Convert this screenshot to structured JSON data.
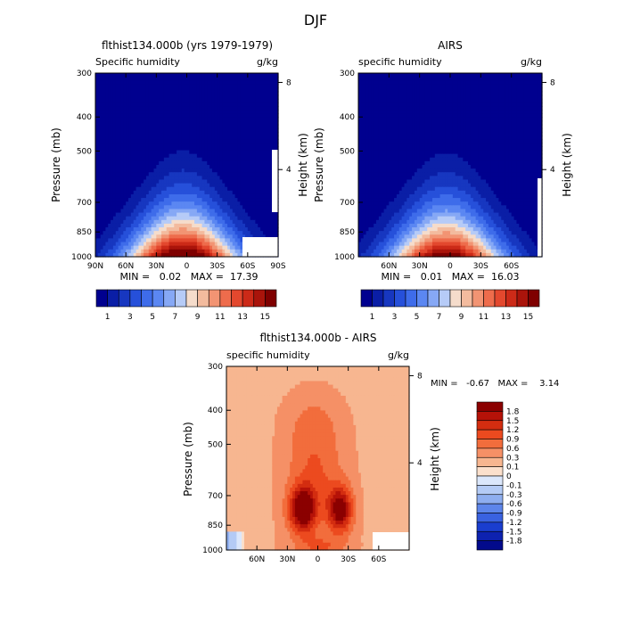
{
  "page": {
    "title": "DJF"
  },
  "chart_data": [
    {
      "type": "heatmap",
      "id": "model",
      "title": "flthist134.000b (yrs 1979-1979)",
      "subtitle_left": "Specific humidity",
      "subtitle_right": "g/kg",
      "xlabel": "",
      "ylabel": "Pressure (mb)",
      "y2label": "Height (km)",
      "xticks": [
        "90N",
        "60N",
        "30N",
        "0",
        "30S",
        "60S",
        "90S"
      ],
      "xtick_lat": [
        90,
        60,
        30,
        0,
        -30,
        -60,
        -90
      ],
      "xlim": [
        90,
        -90
      ],
      "yticks": [
        "300",
        "400",
        "500",
        "700",
        "850",
        "1000"
      ],
      "ytick_p": [
        300,
        400,
        500,
        700,
        850,
        1000
      ],
      "ylim": [
        300,
        1000
      ],
      "y2ticks": [
        "8",
        "4"
      ],
      "y2tick_km": [
        8,
        4
      ],
      "stats": "MIN =   0.02   MAX =  17.39",
      "peak_value": 17.39
    },
    {
      "type": "heatmap",
      "id": "obs",
      "title": "AIRS",
      "subtitle_left": "specific humidity",
      "subtitle_right": "g/kg",
      "xlabel": "",
      "ylabel": "Pressure (mb)",
      "y2label": "Height (km)",
      "xticks": [
        "60N",
        "30N",
        "0",
        "30S",
        "60S"
      ],
      "xtick_lat": [
        60,
        30,
        0,
        -30,
        -60
      ],
      "xlim": [
        90,
        -90
      ],
      "yticks": [
        "300",
        "400",
        "500",
        "700",
        "850",
        "1000"
      ],
      "ytick_p": [
        300,
        400,
        500,
        700,
        850,
        1000
      ],
      "ylim": [
        300,
        1000
      ],
      "y2ticks": [
        "8",
        "4"
      ],
      "y2tick_km": [
        8,
        4
      ],
      "stats": "MIN =   0.01   MAX =  16.03",
      "peak_value": 16.03
    },
    {
      "type": "heatmap",
      "id": "diff",
      "title": "flthist134.000b - AIRS",
      "subtitle_left": "specific humidity",
      "subtitle_right": "g/kg",
      "xlabel": "",
      "ylabel": "Pressure (mb)",
      "y2label": "Height (km)",
      "xticks": [
        "60N",
        "30N",
        "0",
        "30S",
        "60S"
      ],
      "xtick_lat": [
        60,
        30,
        0,
        -30,
        -60
      ],
      "xlim": [
        90,
        -90
      ],
      "yticks": [
        "300",
        "400",
        "500",
        "700",
        "850",
        "1000"
      ],
      "ytick_p": [
        300,
        400,
        500,
        700,
        850,
        1000
      ],
      "ylim": [
        300,
        1000
      ],
      "y2ticks": [
        "8",
        "4"
      ],
      "y2tick_km": [
        8,
        4
      ],
      "stats": "MIN =   -0.67   MAX =    3.14"
    }
  ],
  "colorbar_abs": {
    "labels": [
      "1",
      "3",
      "5",
      "7",
      "9",
      "11",
      "13",
      "15"
    ],
    "colors": [
      "#00008f",
      "#0a1ea6",
      "#1737c0",
      "#2650da",
      "#3e6cea",
      "#5b87f2",
      "#86a8f5",
      "#b6cbf7",
      "#f5dccb",
      "#f3bb9e",
      "#f29473",
      "#ee6c4c",
      "#e3482e",
      "#cc2a18",
      "#aa140b",
      "#7f0000"
    ]
  },
  "colorbar_diff": {
    "labels": [
      "1.8",
      "1.5",
      "1.2",
      "0.9",
      "0.6",
      "0.3",
      "0.1",
      "0",
      "-0.1",
      "-0.3",
      "-0.6",
      "-0.9",
      "-1.2",
      "-1.5",
      "-1.8"
    ],
    "colors": [
      "#8b0000",
      "#b51208",
      "#d32d10",
      "#ec4a1f",
      "#f26d3c",
      "#f59066",
      "#f7b690",
      "#fbe0cc",
      "#dbe7fb",
      "#b4cbf5",
      "#8eaeef",
      "#5d85ea",
      "#3a62e0",
      "#1a3ecf",
      "#0d22b0",
      "#020a8c"
    ]
  }
}
